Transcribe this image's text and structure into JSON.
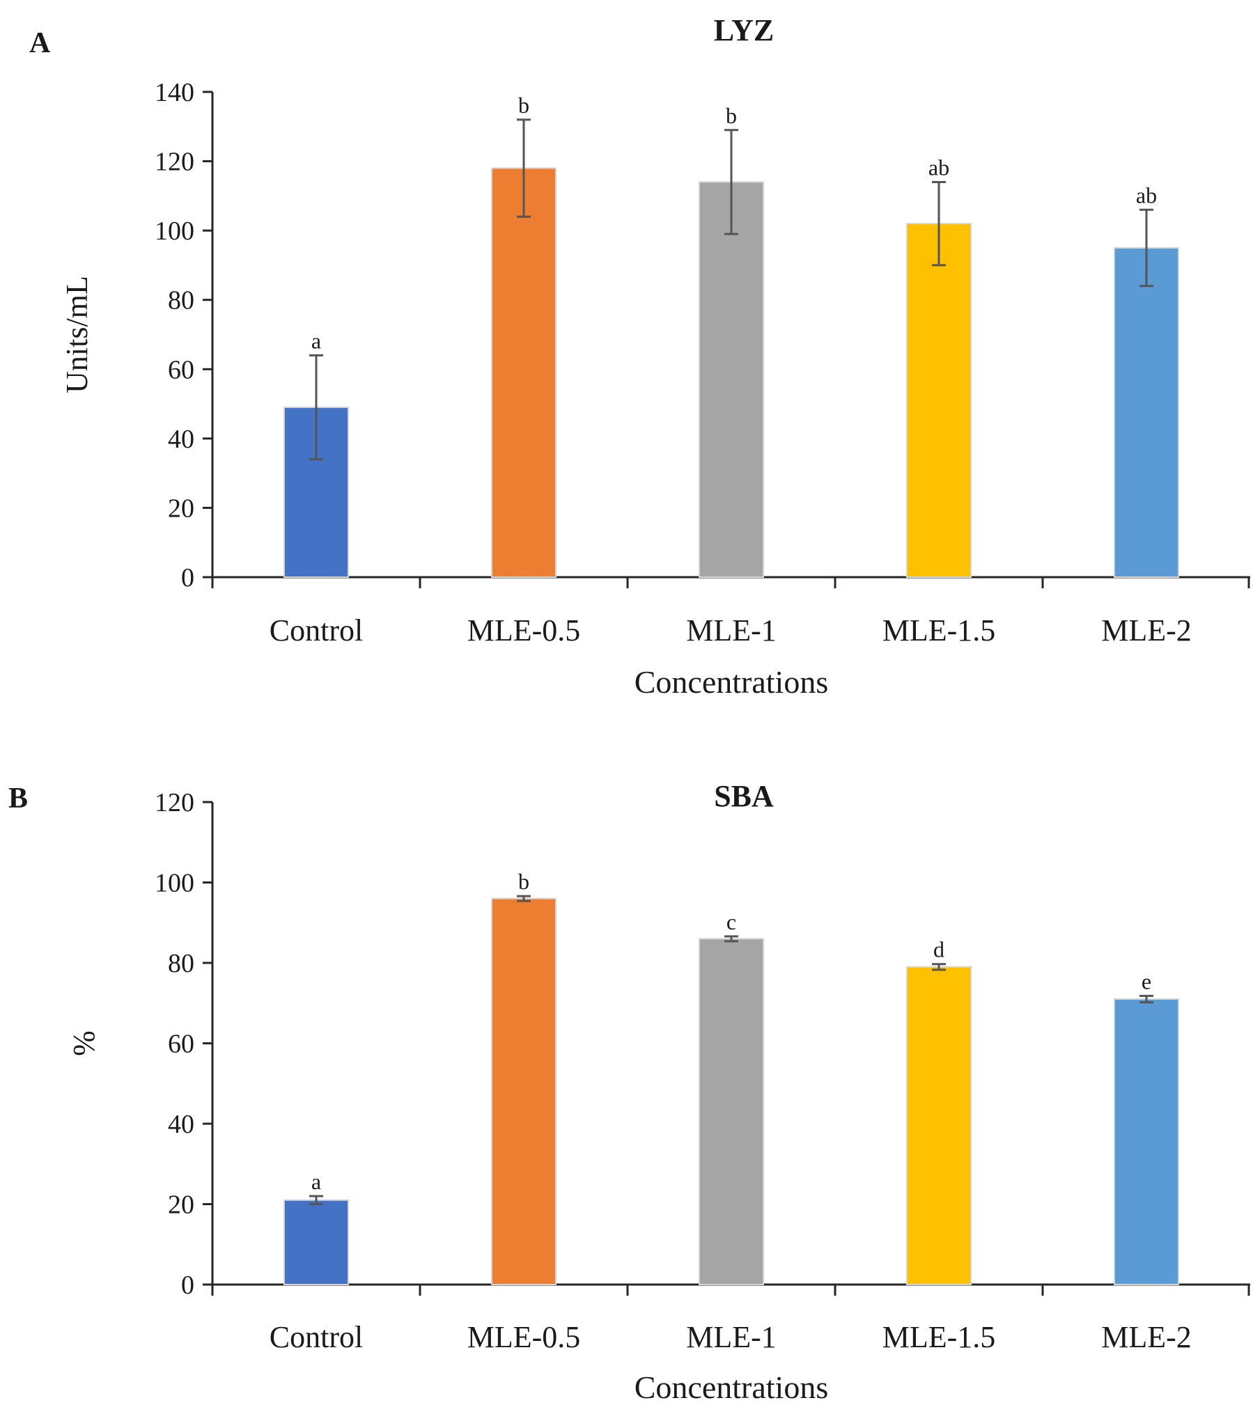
{
  "chart_data": [
    {
      "type": "bar",
      "panel": "A",
      "title": "LYZ",
      "xlabel": "Concentrations",
      "ylabel": "Units/mL",
      "ylim": [
        0,
        140
      ],
      "yticks": [
        0,
        20,
        40,
        60,
        80,
        100,
        120,
        140
      ],
      "categories": [
        "Control",
        "MLE-0.5",
        "MLE-1",
        "MLE-1.5",
        "MLE-2"
      ],
      "values": [
        49,
        118,
        114,
        102,
        95
      ],
      "errors": [
        15,
        14,
        15,
        12,
        11
      ],
      "significance": [
        "a",
        "b",
        "b",
        "ab",
        "ab"
      ],
      "colors": [
        "#4472c4",
        "#ed7d31",
        "#a5a5a5",
        "#ffc000",
        "#5b9bd5"
      ],
      "grid": false,
      "legend": "none"
    },
    {
      "type": "bar",
      "panel": "B",
      "title": "SBA",
      "xlabel": "Concentrations",
      "ylabel": "%",
      "ylim": [
        0,
        120
      ],
      "yticks": [
        0,
        20,
        40,
        60,
        80,
        100,
        120
      ],
      "categories": [
        "Control",
        "MLE-0.5",
        "MLE-1",
        "MLE-1.5",
        "MLE-2"
      ],
      "values": [
        21,
        96,
        86,
        79,
        71
      ],
      "errors": [
        1,
        0.6,
        0.6,
        0.7,
        0.8
      ],
      "significance": [
        "a",
        "b",
        "c",
        "d",
        "e"
      ],
      "colors": [
        "#4472c4",
        "#ed7d31",
        "#a5a5a5",
        "#ffc000",
        "#5b9bd5"
      ],
      "grid": false,
      "legend": "none"
    }
  ]
}
